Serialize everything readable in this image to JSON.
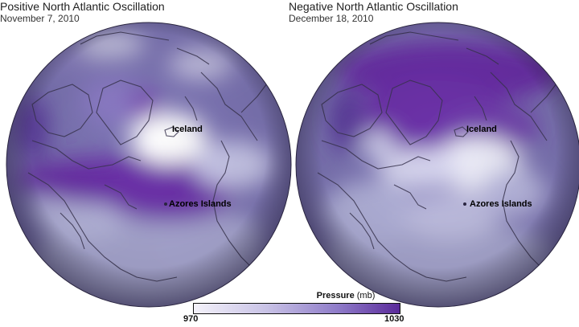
{
  "panels": [
    {
      "title": "Positive North Atlantic Oscillation",
      "date": "November 7, 2010",
      "labels": {
        "iceland": "Iceland",
        "azores": "Azores Islands"
      }
    },
    {
      "title": "Negative North Atlantic Oscillation",
      "date": "December 18, 2010",
      "labels": {
        "iceland": "Iceland",
        "azores": "Azores Islands"
      }
    }
  ],
  "legend": {
    "variable": "Pressure",
    "unit": "(mb)",
    "min": "970",
    "max": "1030",
    "color_low": "#f4f2fa",
    "color_high": "#5a2a9a"
  },
  "colors": {
    "globe_base": "#6f64a8",
    "low_pressure": "#6a2fa8",
    "high_pressure": "#ffffff",
    "coastline": "#3a3550"
  }
}
